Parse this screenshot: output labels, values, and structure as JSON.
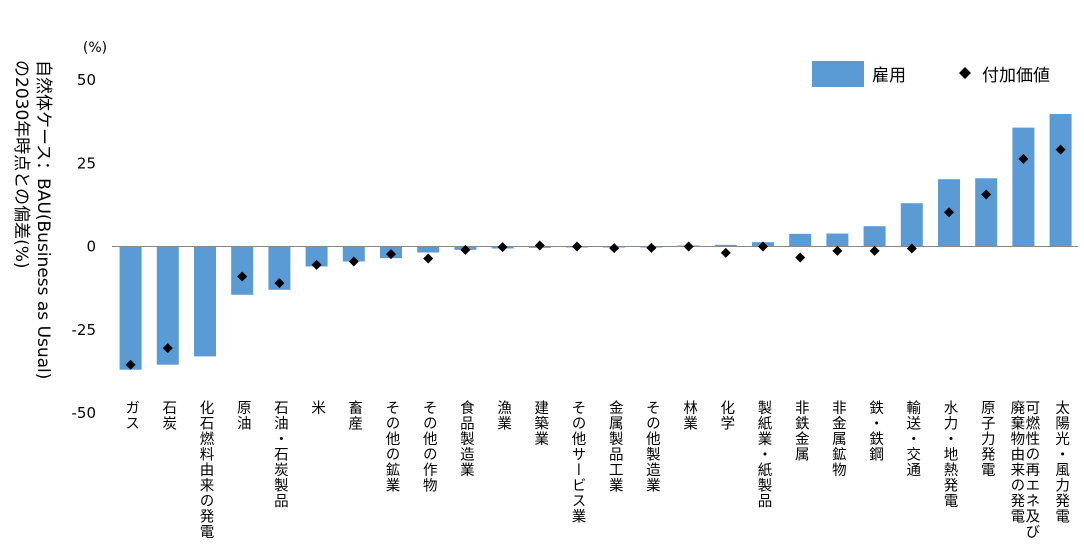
{
  "chart_data": {
    "type": "bar",
    "unit_label": "(%)",
    "ylabel": "自然体ケース：BAU(Business as Usual)\nの2030年時点との偏差(%)",
    "ylim": [
      -50,
      50
    ],
    "yticks": [
      50,
      25,
      0,
      -25,
      -50
    ],
    "grid": false,
    "legend_position": "top-right",
    "categories": [
      "ガス",
      "石炭",
      "化石燃料由来の発電",
      "原油",
      "石油・石炭製品",
      "米",
      "畜産",
      "その他の鉱業",
      "その他の作物",
      "食品製造業",
      "漁業",
      "建築業",
      "その他サービス業",
      "金属製品工業",
      "その他製造業",
      "林業",
      "化学",
      "製紙業・紙製品",
      "非鉄金属",
      "非金属鉱物",
      "鉄・鉄鋼",
      "輸送・交通",
      "水力・地熱発電",
      "原子力発電",
      "可燃性の再エネ及び\n廃棄物由来の発電",
      "太陽光・風力発電"
    ],
    "series": [
      {
        "name": "雇用",
        "kind": "bar",
        "color": "#5b9bd5",
        "values": [
          -37,
          -35.5,
          -33,
          -14.5,
          -13,
          -6,
          -4.5,
          -3.5,
          -1.8,
          -1,
          -0.6,
          -0.4,
          -0.2,
          -0.2,
          -0.1,
          0.2,
          0.5,
          1.3,
          3.8,
          3.9,
          6.1,
          13.0,
          20.2,
          20.5,
          35.7,
          39.8
        ]
      },
      {
        "name": "付加価値",
        "kind": "marker",
        "marker": "diamond",
        "color": "#000000",
        "values": [
          -35.5,
          -30.5,
          null,
          -9,
          -11,
          -5.5,
          -4.5,
          -2.3,
          -3.6,
          -1,
          -0.2,
          0.3,
          0,
          -0.5,
          -0.4,
          0,
          -1.9,
          0,
          -3.3,
          -1.3,
          -1.3,
          -0.6,
          10.3,
          15.6,
          26.3,
          29.1
        ]
      }
    ]
  }
}
